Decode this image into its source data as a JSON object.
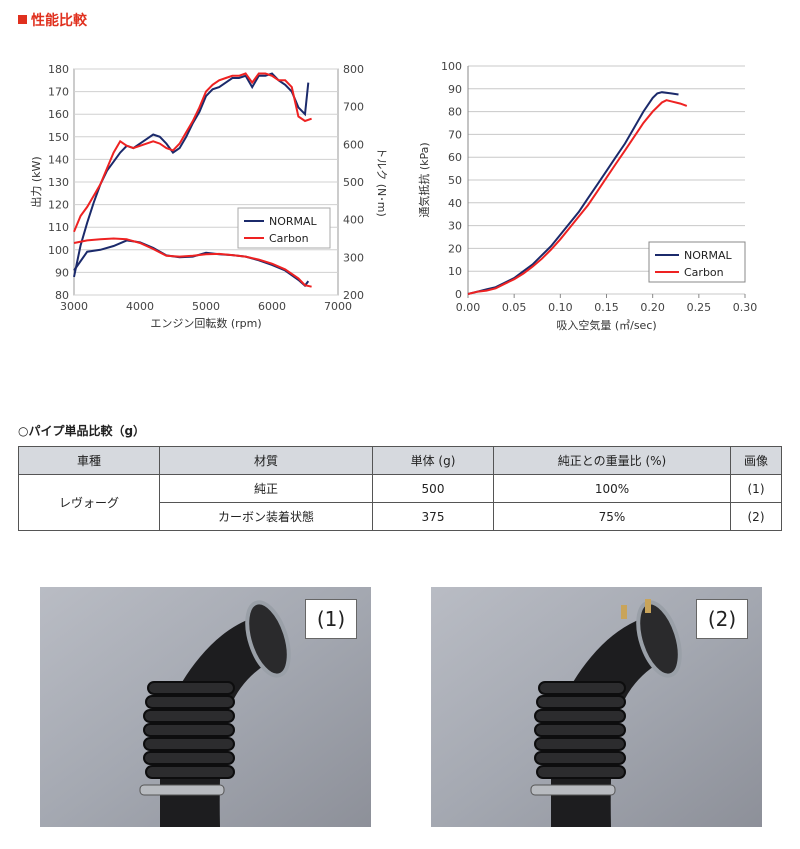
{
  "header": {
    "title": "性能比較"
  },
  "chart_data": [
    {
      "type": "line",
      "xlabel": "エンジン回転数 (rpm)",
      "ylabel": "出力 (kW)",
      "y2label": "トルク (N･m)",
      "xlim": [
        3000,
        7000
      ],
      "ylim": [
        80,
        180
      ],
      "y2lim": [
        200,
        800
      ],
      "xticks": [
        "3000",
        "4000",
        "5000",
        "6000",
        "7000"
      ],
      "yticks": [
        "80",
        "90",
        "100",
        "110",
        "120",
        "130",
        "140",
        "150",
        "160",
        "170",
        "180"
      ],
      "y2ticks": [
        "200",
        "300",
        "400",
        "500",
        "600",
        "700",
        "800"
      ],
      "legend_position": "center-right",
      "legend": [
        "NORMAL",
        "Carbon"
      ],
      "colors": {
        "NORMAL": "#1b2a6b",
        "Carbon": "#ee2222"
      },
      "series": [
        {
          "name": "NORMAL",
          "axis": "power",
          "x": [
            3000,
            3100,
            3200,
            3300,
            3400,
            3500,
            3600,
            3700,
            3800,
            3900,
            4000,
            4100,
            4200,
            4300,
            4400,
            4500,
            4600,
            4700,
            4800,
            4900,
            5000,
            5100,
            5200,
            5300,
            5400,
            5500,
            5600,
            5700,
            5800,
            5900,
            6000,
            6100,
            6200,
            6300,
            6400,
            6500,
            6550
          ],
          "y": [
            88,
            102,
            112,
            121,
            129,
            135,
            139,
            143,
            146,
            145,
            147,
            149,
            151,
            150,
            147,
            143,
            145,
            150,
            156,
            161,
            168,
            171,
            172,
            174,
            176,
            176,
            177,
            172,
            177,
            177,
            178,
            175,
            173,
            170,
            163,
            160,
            174
          ]
        },
        {
          "name": "Carbon",
          "axis": "power",
          "x": [
            3000,
            3100,
            3200,
            3300,
            3400,
            3500,
            3600,
            3700,
            3800,
            3900,
            4000,
            4100,
            4200,
            4300,
            4400,
            4500,
            4600,
            4700,
            4800,
            4900,
            5000,
            5100,
            5200,
            5300,
            5400,
            5500,
            5600,
            5700,
            5800,
            5900,
            6000,
            6100,
            6200,
            6300,
            6400,
            6500,
            6600
          ],
          "y": [
            108,
            115,
            119,
            124,
            129,
            136,
            143,
            148,
            146,
            145,
            146,
            147,
            148,
            147,
            145,
            144,
            147,
            152,
            157,
            163,
            170,
            173,
            175,
            176,
            177,
            177,
            178,
            174,
            178,
            178,
            177,
            175,
            175,
            172,
            159,
            157,
            158
          ]
        },
        {
          "name": "NORMAL",
          "axis": "torque",
          "x": [
            3000,
            3200,
            3400,
            3600,
            3800,
            4000,
            4200,
            4400,
            4600,
            4800,
            5000,
            5200,
            5400,
            5600,
            5800,
            6000,
            6200,
            6400,
            6500,
            6550
          ],
          "y": [
            265,
            315,
            320,
            330,
            345,
            340,
            325,
            305,
            300,
            302,
            312,
            308,
            306,
            302,
            292,
            280,
            265,
            240,
            225,
            237
          ]
        },
        {
          "name": "Carbon",
          "axis": "torque",
          "x": [
            3000,
            3200,
            3400,
            3600,
            3800,
            4000,
            4200,
            4400,
            4600,
            4800,
            5000,
            5200,
            5400,
            5600,
            5800,
            6000,
            6200,
            6400,
            6500,
            6600
          ],
          "y": [
            338,
            345,
            348,
            350,
            348,
            338,
            322,
            304,
            302,
            304,
            308,
            309,
            306,
            302,
            294,
            283,
            268,
            244,
            226,
            222
          ]
        }
      ]
    },
    {
      "type": "line",
      "xlabel": "吸入空気量 (㎥/sec)",
      "ylabel": "通気抵抗 (kPa)",
      "xlim": [
        0,
        0.3
      ],
      "ylim": [
        0,
        100
      ],
      "xticks": [
        "0.00",
        "0.05",
        "0.10",
        "0.15",
        "0.20",
        "0.25",
        "0.30"
      ],
      "yticks": [
        "0",
        "10",
        "20",
        "30",
        "40",
        "50",
        "60",
        "70",
        "80",
        "90",
        "100"
      ],
      "legend_position": "bottom-right",
      "legend": [
        "NORMAL",
        "Carbon"
      ],
      "colors": {
        "NORMAL": "#1b2a6b",
        "Carbon": "#ee2222"
      },
      "series": [
        {
          "name": "NORMAL",
          "x": [
            0,
            0.01,
            0.02,
            0.03,
            0.04,
            0.05,
            0.06,
            0.07,
            0.08,
            0.09,
            0.1,
            0.11,
            0.12,
            0.13,
            0.14,
            0.15,
            0.16,
            0.17,
            0.18,
            0.19,
            0.2,
            0.205,
            0.21,
            0.22,
            0.228
          ],
          "y": [
            0,
            1,
            2,
            3,
            5,
            7,
            10,
            13,
            17,
            21,
            26,
            31,
            36,
            42,
            48,
            54,
            60,
            66,
            73,
            80,
            86,
            88,
            88.5,
            88,
            87.5
          ]
        },
        {
          "name": "Carbon",
          "x": [
            0,
            0.01,
            0.02,
            0.03,
            0.04,
            0.05,
            0.06,
            0.07,
            0.08,
            0.09,
            0.1,
            0.11,
            0.12,
            0.13,
            0.14,
            0.15,
            0.16,
            0.17,
            0.18,
            0.19,
            0.2,
            0.21,
            0.215,
            0.22,
            0.23,
            0.237
          ],
          "y": [
            0,
            1,
            1.5,
            2.5,
            4.5,
            6.5,
            9,
            12,
            15.5,
            19.5,
            24,
            29,
            34,
            39,
            45,
            51,
            57,
            63,
            69,
            75,
            80,
            84,
            85,
            84.5,
            83.5,
            82.5
          ]
        }
      ]
    }
  ],
  "table": {
    "title": "○パイプ単品比較（g）",
    "headers": [
      "車種",
      "材質",
      "単体 (g)",
      "純正との重量比 (%)",
      "画像"
    ],
    "vehicle": "レヴォーグ",
    "rows": [
      {
        "material": "純正",
        "weight": "500",
        "ratio": "100%",
        "image": "(1)"
      },
      {
        "material": "カーボン装着状態",
        "weight": "375",
        "ratio": "75%",
        "image": "(2)"
      }
    ]
  },
  "photos": [
    {
      "label": "(1)"
    },
    {
      "label": "(2)"
    }
  ]
}
